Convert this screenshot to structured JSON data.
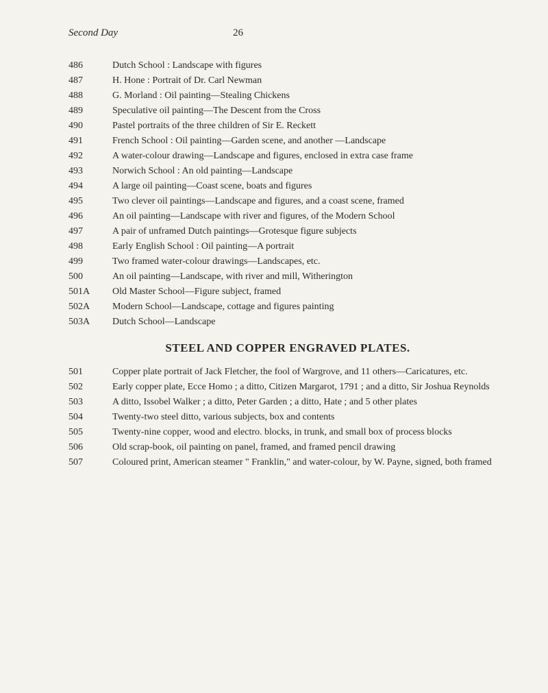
{
  "header": {
    "left": "Second Day",
    "page_number": "26"
  },
  "entries_top": [
    {
      "lot": "486",
      "desc": "Dutch School : Landscape with figures"
    },
    {
      "lot": "487",
      "desc": "H. Hone : Portrait of Dr. Carl Newman"
    },
    {
      "lot": "488",
      "desc": "G. Morland : Oil painting—Stealing Chickens"
    },
    {
      "lot": "489",
      "desc": "Speculative oil painting—The Descent from the Cross"
    },
    {
      "lot": "490",
      "desc": "Pastel portraits of the three children of Sir E. Reckett"
    },
    {
      "lot": "491",
      "desc": "French School : Oil painting—Garden scene, and another —Landscape"
    },
    {
      "lot": "492",
      "desc": "A water-colour drawing—Landscape and figures, enclosed in extra case frame"
    },
    {
      "lot": "493",
      "desc": "Norwich School : An old painting—Landscape"
    },
    {
      "lot": "494",
      "desc": "A large oil painting—Coast scene, boats and figures"
    },
    {
      "lot": "495",
      "desc": "Two clever oil paintings—Landscape and figures, and a coast scene, framed"
    },
    {
      "lot": "496",
      "desc": "An oil painting—Landscape with river and figures, of the Modern School"
    },
    {
      "lot": "497",
      "desc": "A pair of unframed Dutch paintings—Grotesque figure subjects"
    },
    {
      "lot": "498",
      "desc": "Early English School : Oil painting—A portrait"
    },
    {
      "lot": "499",
      "desc": "Two framed water-colour drawings—Landscapes, etc."
    },
    {
      "lot": "500",
      "desc": "An oil painting—Landscape, with river and mill, Witherington"
    },
    {
      "lot": "501A",
      "desc": "Old Master School—Figure subject, framed"
    },
    {
      "lot": "502A",
      "desc": "Modern School—Landscape, cottage and figures painting"
    },
    {
      "lot": "503A",
      "desc": "Dutch School—Landscape"
    }
  ],
  "section_title": "STEEL AND COPPER ENGRAVED PLATES.",
  "entries_bottom": [
    {
      "lot": "501",
      "desc": "Copper plate portrait of Jack Fletcher, the fool of Wargrove, and 11 others—Caricatures, etc."
    },
    {
      "lot": "502",
      "desc": "Early copper plate, Ecce Homo ; a ditto, Citizen Margarot, 1791 ; and a ditto, Sir Joshua Reynolds"
    },
    {
      "lot": "503",
      "desc": "A ditto, Issobel Walker ; a ditto, Peter Garden ; a ditto, Hate ; and 5 other plates"
    },
    {
      "lot": "504",
      "desc": "Twenty-two steel ditto, various subjects, box and contents"
    },
    {
      "lot": "505",
      "desc": "Twenty-nine copper, wood and electro. blocks, in trunk, and small box of process blocks"
    },
    {
      "lot": "506",
      "desc": "Old scrap-book, oil painting on panel, framed, and framed pencil drawing"
    },
    {
      "lot": "507",
      "desc": "Coloured print, American steamer \" Franklin,\" and water-colour, by W. Payne, signed, both framed"
    }
  ]
}
